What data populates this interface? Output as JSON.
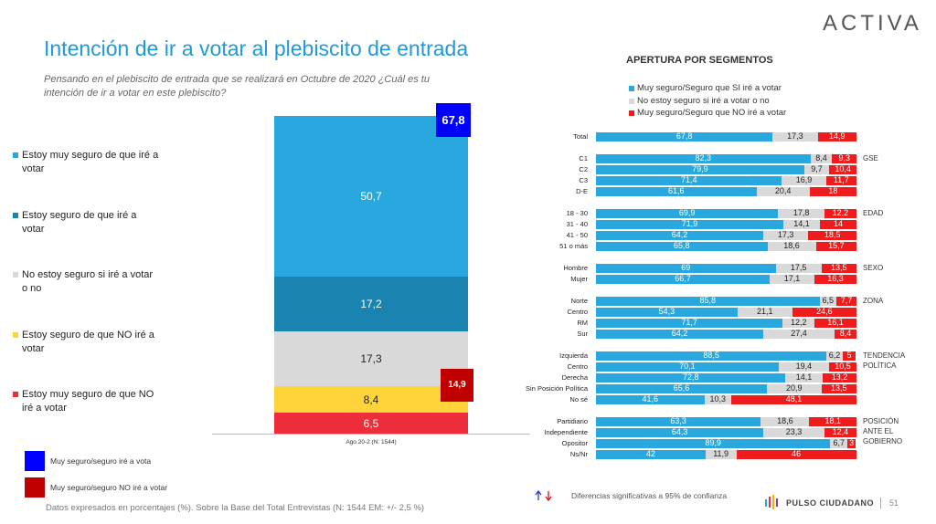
{
  "header": {
    "logo": "ACTIVA",
    "title": "Intención de ir a votar al plebiscito de entrada",
    "subtitle": "Pensando en el plebiscito de entrada que se realizará en Octubre de 2020 ¿Cuál es tu intención de ir a votar en este plebiscito?"
  },
  "footer": {
    "note": "Datos expresados en porcentajes (%). Sobre la Base del Total Entrevistas (N: 1544  EM: +/- 2,5 %)",
    "significance": "Diferencias  significativas a 95% de confianza",
    "brand": "PULSO CIUDADANO",
    "page": "51"
  },
  "chart_data": [
    {
      "type": "stacked_bar",
      "categories": [
        "Ago 20-2 (N: 1544)"
      ],
      "ylim": [
        0,
        100
      ],
      "series": [
        {
          "name": "Estoy muy seguro de que iré a votar",
          "color": "#29a8e0",
          "values": [
            50.7
          ],
          "value_labels": [
            "50,7"
          ]
        },
        {
          "name": "Estoy seguro de que iré a votar",
          "color": "#1b83b0",
          "values": [
            17.2
          ],
          "value_labels": [
            "17,2"
          ]
        },
        {
          "name": "No estoy seguro si iré a votar o no",
          "color": "#d9d9d9",
          "values": [
            17.3
          ],
          "value_labels": [
            "17,3"
          ]
        },
        {
          "name": "Estoy seguro de que NO iré a votar",
          "color": "#ffd43b",
          "values": [
            8.4
          ],
          "value_labels": [
            "8,4"
          ]
        },
        {
          "name": "Estoy muy seguro de que NO iré a votar",
          "color": "#ee2d3a",
          "values": [
            6.5
          ],
          "value_labels": [
            "6,5"
          ]
        }
      ],
      "totals": [
        {
          "name": "Muy seguro/seguro iré a vota",
          "color": "#0000ff",
          "value": 67.8,
          "label": "67,8"
        },
        {
          "name": "Muy seguro/seguro NO iré a votar",
          "color": "#c00000",
          "value": 14.9,
          "label": "14,9"
        }
      ]
    },
    {
      "type": "stacked_barh",
      "title": "APERTURA POR SEGMENTOS",
      "xlim": [
        0,
        100
      ],
      "series": [
        {
          "name": "Muy seguro/Seguro que SI iré a votar",
          "color": "#29a8e0"
        },
        {
          "name": "No estoy seguro si iré a votar o no",
          "color": "#d9d9d9"
        },
        {
          "name": "Muy seguro/Seguro que NO iré a votar",
          "color": "#ee1c1c"
        }
      ],
      "groups": [
        {
          "name": null,
          "categories": [
            "Total"
          ],
          "values": [
            [
              67.8
            ],
            [
              17.3
            ],
            [
              14.9
            ]
          ],
          "value_labels": [
            [
              "67,8"
            ],
            [
              "17,3"
            ],
            [
              "14,9"
            ]
          ]
        },
        {
          "name": "GSE",
          "categories": [
            "C1",
            "C2",
            "C3",
            "D-E"
          ],
          "values": [
            [
              82.3,
              79.9,
              71.4,
              61.6
            ],
            [
              8.4,
              9.7,
              16.9,
              20.4
            ],
            [
              9.3,
              10.4,
              11.7,
              18
            ]
          ],
          "value_labels": [
            [
              "82,3",
              "79,9",
              "71,4",
              "61,6"
            ],
            [
              "8,4",
              "9,7",
              "16,9",
              "20,4"
            ],
            [
              "9,3",
              "10,4",
              "11,7",
              "18"
            ]
          ]
        },
        {
          "name": "EDAD",
          "categories": [
            "18 - 30",
            "31 - 40",
            "41 - 50",
            "51 o más"
          ],
          "values": [
            [
              69.9,
              71.9,
              64.2,
              65.8
            ],
            [
              17.8,
              14.1,
              17.3,
              18.6
            ],
            [
              12.2,
              14,
              18.5,
              15.7
            ]
          ],
          "value_labels": [
            [
              "69,9",
              "71,9",
              "64,2",
              "65,8"
            ],
            [
              "17,8",
              "14,1",
              "17,3",
              "18,6"
            ],
            [
              "12,2",
              "14",
              "18,5",
              "15,7"
            ]
          ]
        },
        {
          "name": "SEXO",
          "categories": [
            "Hombre",
            "Mujer"
          ],
          "values": [
            [
              69,
              66.7
            ],
            [
              17.5,
              17.1
            ],
            [
              13.5,
              16.3
            ]
          ],
          "value_labels": [
            [
              "69",
              "66,7"
            ],
            [
              "17,5",
              "17,1"
            ],
            [
              "13,5",
              "16,3"
            ]
          ]
        },
        {
          "name": "ZONA",
          "categories": [
            "Norte",
            "Centro",
            "RM",
            "Sur"
          ],
          "values": [
            [
              85.8,
              54.3,
              71.7,
              64.2
            ],
            [
              6.5,
              21.1,
              12.2,
              27.4
            ],
            [
              7.7,
              24.6,
              16.1,
              8.4
            ]
          ],
          "value_labels": [
            [
              "85,8",
              "54,3",
              "71,7",
              "64,2"
            ],
            [
              "6,5",
              "21,1",
              "12,2",
              "27,4"
            ],
            [
              "7,7",
              "24,6",
              "16,1",
              "8,4"
            ]
          ]
        },
        {
          "name": "TENDENCIA POLÍTICA",
          "categories": [
            "Izquierda",
            "Centro",
            "Derecha",
            "Sin Posición Política",
            "No sé"
          ],
          "values": [
            [
              88.5,
              70.1,
              72.8,
              65.6,
              41.6
            ],
            [
              6.2,
              19.4,
              14.1,
              20.9,
              10.3
            ],
            [
              5,
              10.5,
              13.2,
              13.5,
              48.1
            ]
          ],
          "value_labels": [
            [
              "88,5",
              "70,1",
              "72,8",
              "65,6",
              "41,6"
            ],
            [
              "6,2",
              "19,4",
              "14,1",
              "20,9",
              "10,3"
            ],
            [
              "5",
              "10,5",
              "13,2",
              "13,5",
              "48,1"
            ]
          ]
        },
        {
          "name": "POSICIÓN ANTE EL GOBIERNO",
          "categories": [
            "Partidiario",
            "Independiente",
            "Opositor",
            "Ns/Nr"
          ],
          "values": [
            [
              63.3,
              64.3,
              89.9,
              42
            ],
            [
              18.6,
              23.3,
              6.7,
              11.9
            ],
            [
              18.1,
              12.4,
              3,
              46
            ]
          ],
          "value_labels": [
            [
              "63,3",
              "64,3",
              "89,9",
              "42"
            ],
            [
              "18,6",
              "23,3",
              "6,7",
              "11,9"
            ],
            [
              "18,1",
              "12,4",
              "3",
              "46"
            ]
          ]
        }
      ]
    }
  ]
}
